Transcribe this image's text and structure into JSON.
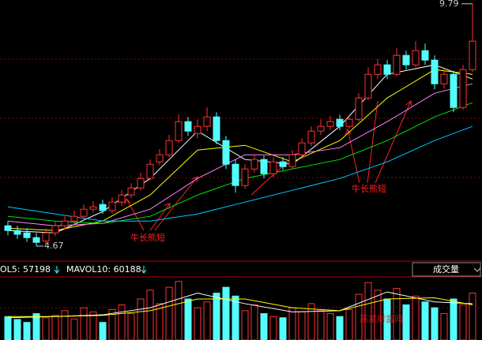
{
  "chart_data": [
    {
      "type": "candlestick",
      "open": [
        5.1,
        5.0,
        4.95,
        4.85,
        4.78,
        4.95,
        5.1,
        5.2,
        5.3,
        5.45,
        5.55,
        5.42,
        5.6,
        5.75,
        5.9,
        6.1,
        6.45,
        6.6,
        6.9,
        7.3,
        7.05,
        7.2,
        7.4,
        6.9,
        6.4,
        5.95,
        6.3,
        6.5,
        6.2,
        6.45,
        6.35,
        6.6,
        6.85,
        7.1,
        7.2,
        7.35,
        7.2,
        7.35,
        7.8,
        8.3,
        8.5,
        8.3,
        8.7,
        8.5,
        8.8,
        8.6,
        8.1,
        8.3,
        7.6,
        8.4
      ],
      "high": [
        5.2,
        5.1,
        5.05,
        4.95,
        5.05,
        5.2,
        5.3,
        5.42,
        5.55,
        5.62,
        5.65,
        5.7,
        5.85,
        6.0,
        6.22,
        6.5,
        6.72,
        7.02,
        7.45,
        7.4,
        7.35,
        7.6,
        7.5,
        7.0,
        6.5,
        6.4,
        6.6,
        6.58,
        6.55,
        6.55,
        6.7,
        6.95,
        7.2,
        7.35,
        7.42,
        7.45,
        7.45,
        7.9,
        8.45,
        8.62,
        8.6,
        8.85,
        8.8,
        9.0,
        8.95,
        8.7,
        8.42,
        8.38,
        8.5,
        9.79
      ],
      "low": [
        4.9,
        4.82,
        4.76,
        4.67,
        4.7,
        4.88,
        5.02,
        5.12,
        5.22,
        5.38,
        5.35,
        5.36,
        5.52,
        5.68,
        5.85,
        6.05,
        6.38,
        6.55,
        6.85,
        7.0,
        6.95,
        7.1,
        6.82,
        6.3,
        5.8,
        5.88,
        6.22,
        6.1,
        6.12,
        6.28,
        6.3,
        6.52,
        6.78,
        7.02,
        7.12,
        7.12,
        7.15,
        7.3,
        7.75,
        8.2,
        8.2,
        8.25,
        8.4,
        8.45,
        8.5,
        7.98,
        8.0,
        7.5,
        7.55,
        8.35
      ],
      "close": [
        5.0,
        4.92,
        4.85,
        4.75,
        4.95,
        5.1,
        5.2,
        5.3,
        5.45,
        5.5,
        5.42,
        5.6,
        5.75,
        5.9,
        6.1,
        6.4,
        6.6,
        6.9,
        7.3,
        7.1,
        7.2,
        7.4,
        6.9,
        6.4,
        5.95,
        6.3,
        6.5,
        6.2,
        6.45,
        6.35,
        6.6,
        6.85,
        7.1,
        7.2,
        7.3,
        7.2,
        7.35,
        7.8,
        8.3,
        8.5,
        8.3,
        8.7,
        8.5,
        8.8,
        8.6,
        8.1,
        8.3,
        7.6,
        8.4,
        9.0
      ],
      "up_color": "#ff3232",
      "down_color": "#54fcfc",
      "ylim": [
        4.37,
        9.87
      ],
      "max_label": 9.79,
      "min_label": 4.67,
      "moving_averages": [
        {
          "color": "#ffffff",
          "x": [
            0,
            5,
            10,
            15,
            20,
            25,
            30,
            35,
            40,
            45,
            49
          ],
          "values": [
            5.0,
            4.95,
            5.4,
            6.1,
            7.1,
            6.5,
            6.4,
            7.2,
            8.3,
            8.5,
            8.2
          ]
        },
        {
          "color": "#ffff00",
          "x": [
            0,
            5,
            10,
            15,
            20,
            25,
            30,
            35,
            40,
            45,
            49
          ],
          "values": [
            5.05,
            5.0,
            5.2,
            5.75,
            6.7,
            6.8,
            6.45,
            6.9,
            7.8,
            8.4,
            8.3
          ]
        },
        {
          "color": "#ff80ff",
          "x": [
            0,
            5,
            10,
            15,
            20,
            25,
            30,
            35,
            40,
            45,
            49
          ],
          "values": [
            5.2,
            5.1,
            5.15,
            5.45,
            6.1,
            6.6,
            6.6,
            6.75,
            7.3,
            7.9,
            8.1
          ]
        },
        {
          "color": "#00e600",
          "x": [
            0,
            5,
            10,
            15,
            20,
            25,
            30,
            35,
            40,
            45,
            49
          ],
          "values": [
            5.3,
            5.2,
            5.15,
            5.3,
            5.75,
            6.1,
            6.3,
            6.5,
            6.9,
            7.4,
            7.7
          ]
        },
        {
          "color": "#00c8ff",
          "x": [
            0,
            5,
            10,
            15,
            20,
            25,
            30,
            35,
            40,
            45,
            49
          ],
          "values": [
            5.5,
            5.35,
            5.2,
            5.2,
            5.35,
            5.6,
            5.85,
            6.1,
            6.45,
            6.9,
            7.2
          ]
        }
      ],
      "annotations": [
        "牛长熊短",
        "牛长熊短"
      ]
    },
    {
      "type": "bar",
      "indicator_1": "OL5: 57198",
      "indicator_2": "MAVOL10: 60188",
      "panel_label": "成交量",
      "values": [
        40000,
        35000,
        30000,
        45000,
        38000,
        42000,
        50000,
        36000,
        55000,
        48000,
        30000,
        52000,
        60000,
        45000,
        70000,
        85000,
        62000,
        90000,
        100000,
        70000,
        55000,
        65000,
        80000,
        90000,
        75000,
        50000,
        60000,
        45000,
        40000,
        38000,
        55000,
        48000,
        62000,
        50000,
        45000,
        40000,
        52000,
        78000,
        98000,
        85000,
        70000,
        88000,
        60000,
        75000,
        65000,
        55000,
        45000,
        70000,
        60000,
        80000
      ],
      "ylim": [
        0,
        105000
      ],
      "moving_averages": [
        {
          "color": "#ffffff",
          "x": [
            0,
            5,
            10,
            15,
            20,
            25,
            30,
            35,
            40,
            45,
            49
          ],
          "values": [
            38000,
            40000,
            43000,
            55000,
            80000,
            62000,
            48000,
            50000,
            82000,
            65000,
            62000
          ]
        },
        {
          "color": "#ffff00",
          "x": [
            0,
            5,
            10,
            15,
            20,
            25,
            30,
            35,
            40,
            45,
            49
          ],
          "values": [
            40000,
            40000,
            42000,
            50000,
            70000,
            70000,
            55000,
            50000,
            70000,
            72000,
            60000
          ]
        }
      ]
    }
  ],
  "watermark": "赢家财富网"
}
